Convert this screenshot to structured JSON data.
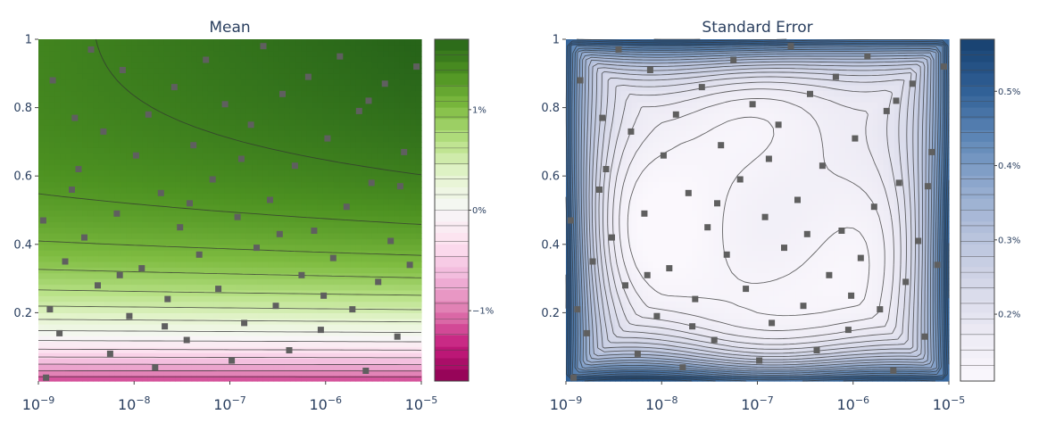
{
  "chart_data": [
    {
      "type": "heatmap",
      "title": "Mean",
      "xlabel": "",
      "ylabel": "",
      "x_scale": "log",
      "xlim": [
        1e-09,
        1e-05
      ],
      "ylim": [
        0,
        1
      ],
      "x_ticks": [
        {
          "base": "10",
          "exp": "−9"
        },
        {
          "base": "10",
          "exp": "−8"
        },
        {
          "base": "10",
          "exp": "−7"
        },
        {
          "base": "10",
          "exp": "−6"
        },
        {
          "base": "10",
          "exp": "−5"
        }
      ],
      "y_ticks": [
        {
          "value": 0.2,
          "label": "0.2"
        },
        {
          "value": 0.4,
          "label": "0.4"
        },
        {
          "value": 0.6,
          "label": "0.6"
        },
        {
          "value": 0.8,
          "label": "0.8"
        },
        {
          "value": 1.0,
          "label": "1"
        }
      ],
      "colorscale": [
        "#8e0152",
        "#c51b7d",
        "#de77ae",
        "#f1b6da",
        "#fde0ef",
        "#f7f7f7",
        "#e6f5d0",
        "#b8e186",
        "#7fbc41",
        "#4d9221",
        "#276419"
      ],
      "colorbar": {
        "min": -1.7,
        "max": 1.7,
        "ticks": [
          {
            "value": 1,
            "label": "1%"
          },
          {
            "value": 0,
            "label": "0%"
          },
          {
            "value": -1,
            "label": "−1%"
          }
        ]
      },
      "marker_color": "#5f5f5f",
      "contour_color": "#333333",
      "trial_points": [
        [
          -8.92,
          0.01
        ],
        [
          -8.85,
          0.88
        ],
        [
          -8.78,
          0.14
        ],
        [
          -8.72,
          0.35
        ],
        [
          -8.65,
          0.56
        ],
        [
          -8.58,
          0.62
        ],
        [
          -8.52,
          0.42
        ],
        [
          -8.45,
          0.97
        ],
        [
          -8.38,
          0.28
        ],
        [
          -8.32,
          0.73
        ],
        [
          -8.25,
          0.08
        ],
        [
          -8.18,
          0.49
        ],
        [
          -8.12,
          0.91
        ],
        [
          -8.05,
          0.19
        ],
        [
          -7.98,
          0.66
        ],
        [
          -7.92,
          0.33
        ],
        [
          -7.85,
          0.78
        ],
        [
          -7.78,
          0.04
        ],
        [
          -7.72,
          0.55
        ],
        [
          -7.65,
          0.24
        ],
        [
          -7.58,
          0.86
        ],
        [
          -7.52,
          0.45
        ],
        [
          -7.45,
          0.12
        ],
        [
          -7.38,
          0.69
        ],
        [
          -7.32,
          0.37
        ],
        [
          -7.25,
          0.94
        ],
        [
          -7.18,
          0.59
        ],
        [
          -7.12,
          0.27
        ],
        [
          -7.05,
          0.81
        ],
        [
          -6.98,
          0.06
        ],
        [
          -6.92,
          0.48
        ],
        [
          -6.85,
          0.17
        ],
        [
          -6.78,
          0.75
        ],
        [
          -6.72,
          0.39
        ],
        [
          -6.65,
          0.98
        ],
        [
          -6.58,
          0.53
        ],
        [
          -6.52,
          0.22
        ],
        [
          -6.45,
          0.84
        ],
        [
          -6.38,
          0.09
        ],
        [
          -6.32,
          0.63
        ],
        [
          -6.25,
          0.31
        ],
        [
          -6.18,
          0.89
        ],
        [
          -6.12,
          0.44
        ],
        [
          -6.05,
          0.15
        ],
        [
          -5.98,
          0.71
        ],
        [
          -5.92,
          0.36
        ],
        [
          -5.85,
          0.95
        ],
        [
          -5.78,
          0.51
        ],
        [
          -5.72,
          0.21
        ],
        [
          -5.65,
          0.79
        ],
        [
          -5.58,
          0.03
        ],
        [
          -5.52,
          0.58
        ],
        [
          -5.45,
          0.29
        ],
        [
          -5.38,
          0.87
        ],
        [
          -5.32,
          0.41
        ],
        [
          -5.25,
          0.13
        ],
        [
          -5.18,
          0.67
        ],
        [
          -5.12,
          0.34
        ],
        [
          -5.05,
          0.92
        ],
        [
          -8.95,
          0.47
        ],
        [
          -8.88,
          0.21
        ],
        [
          -8.62,
          0.77
        ],
        [
          -8.15,
          0.31
        ],
        [
          -7.68,
          0.16
        ],
        [
          -7.42,
          0.52
        ],
        [
          -6.88,
          0.65
        ],
        [
          -6.48,
          0.43
        ],
        [
          -6.02,
          0.25
        ],
        [
          -5.55,
          0.82
        ],
        [
          -5.22,
          0.57
        ]
      ]
    },
    {
      "type": "heatmap",
      "title": "Standard Error",
      "xlabel": "",
      "ylabel": "",
      "x_scale": "log",
      "xlim": [
        1e-09,
        1e-05
      ],
      "ylim": [
        0,
        1
      ],
      "x_ticks": [
        {
          "base": "10",
          "exp": "−9"
        },
        {
          "base": "10",
          "exp": "−8"
        },
        {
          "base": "10",
          "exp": "−7"
        },
        {
          "base": "10",
          "exp": "−6"
        },
        {
          "base": "10",
          "exp": "−5"
        }
      ],
      "y_ticks": [
        {
          "value": 0.2,
          "label": "0.2"
        },
        {
          "value": 0.4,
          "label": "0.4"
        },
        {
          "value": 0.6,
          "label": "0.6"
        },
        {
          "value": 0.8,
          "label": "0.8"
        },
        {
          "value": 1.0,
          "label": "1"
        }
      ],
      "colorscale": [
        "#fbf8fd",
        "#eceaf4",
        "#d4d7e8",
        "#b7c2dc",
        "#90a9ce",
        "#5d86b6",
        "#2f5f95",
        "#17406e"
      ],
      "colorbar": {
        "min": 0.11,
        "max": 0.57,
        "ticks": [
          {
            "value": 0.5,
            "label": "0.5%"
          },
          {
            "value": 0.4,
            "label": "0.4%"
          },
          {
            "value": 0.3,
            "label": "0.3%"
          },
          {
            "value": 0.2,
            "label": "0.2%"
          }
        ]
      },
      "marker_color": "#5f5f5f",
      "contour_color": "#333333",
      "trial_points": [
        [
          -8.92,
          0.01
        ],
        [
          -8.85,
          0.88
        ],
        [
          -8.78,
          0.14
        ],
        [
          -8.72,
          0.35
        ],
        [
          -8.65,
          0.56
        ],
        [
          -8.58,
          0.62
        ],
        [
          -8.52,
          0.42
        ],
        [
          -8.45,
          0.97
        ],
        [
          -8.38,
          0.28
        ],
        [
          -8.32,
          0.73
        ],
        [
          -8.25,
          0.08
        ],
        [
          -8.18,
          0.49
        ],
        [
          -8.12,
          0.91
        ],
        [
          -8.05,
          0.19
        ],
        [
          -7.98,
          0.66
        ],
        [
          -7.92,
          0.33
        ],
        [
          -7.85,
          0.78
        ],
        [
          -7.78,
          0.04
        ],
        [
          -7.72,
          0.55
        ],
        [
          -7.65,
          0.24
        ],
        [
          -7.58,
          0.86
        ],
        [
          -7.52,
          0.45
        ],
        [
          -7.45,
          0.12
        ],
        [
          -7.38,
          0.69
        ],
        [
          -7.32,
          0.37
        ],
        [
          -7.25,
          0.94
        ],
        [
          -7.18,
          0.59
        ],
        [
          -7.12,
          0.27
        ],
        [
          -7.05,
          0.81
        ],
        [
          -6.98,
          0.06
        ],
        [
          -6.92,
          0.48
        ],
        [
          -6.85,
          0.17
        ],
        [
          -6.78,
          0.75
        ],
        [
          -6.72,
          0.39
        ],
        [
          -6.65,
          0.98
        ],
        [
          -6.58,
          0.53
        ],
        [
          -6.52,
          0.22
        ],
        [
          -6.45,
          0.84
        ],
        [
          -6.38,
          0.09
        ],
        [
          -6.32,
          0.63
        ],
        [
          -6.25,
          0.31
        ],
        [
          -6.18,
          0.89
        ],
        [
          -6.12,
          0.44
        ],
        [
          -6.05,
          0.15
        ],
        [
          -5.98,
          0.71
        ],
        [
          -5.92,
          0.36
        ],
        [
          -5.85,
          0.95
        ],
        [
          -5.78,
          0.51
        ],
        [
          -5.72,
          0.21
        ],
        [
          -5.65,
          0.79
        ],
        [
          -5.58,
          0.03
        ],
        [
          -5.52,
          0.58
        ],
        [
          -5.45,
          0.29
        ],
        [
          -5.38,
          0.87
        ],
        [
          -5.32,
          0.41
        ],
        [
          -5.25,
          0.13
        ],
        [
          -5.18,
          0.67
        ],
        [
          -5.12,
          0.34
        ],
        [
          -5.05,
          0.92
        ],
        [
          -8.95,
          0.47
        ],
        [
          -8.88,
          0.21
        ],
        [
          -8.62,
          0.77
        ],
        [
          -8.15,
          0.31
        ],
        [
          -7.68,
          0.16
        ],
        [
          -7.42,
          0.52
        ],
        [
          -6.88,
          0.65
        ],
        [
          -6.48,
          0.43
        ],
        [
          -6.02,
          0.25
        ],
        [
          -5.55,
          0.82
        ],
        [
          -5.22,
          0.57
        ]
      ]
    }
  ]
}
